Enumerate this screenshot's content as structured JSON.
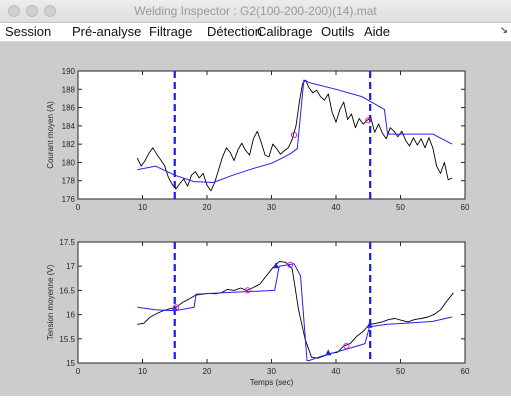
{
  "window": {
    "title": "Welding Inspector : G2(100-200-200)(14).mat"
  },
  "menu": {
    "items": [
      {
        "id": "session",
        "label": "Session"
      },
      {
        "id": "pre-analyse",
        "label": "Pré-analyse"
      },
      {
        "id": "filtrage",
        "label": "Filtrage"
      },
      {
        "id": "detection",
        "label": "Détection"
      },
      {
        "id": "calibrage",
        "label": "Calibrage"
      },
      {
        "id": "outils",
        "label": "Outils"
      },
      {
        "id": "aide",
        "label": "Aide"
      }
    ],
    "overflow_icon": "chevron-down-icon"
  },
  "colors": {
    "signal": "#000000",
    "model": "#2222ee",
    "marker": "#dd22dd",
    "cut": "#1a1aee"
  },
  "chart_data": [
    {
      "type": "line",
      "title": "",
      "xlabel": "",
      "ylabel": "Courant moyen (A)",
      "xlim": [
        0,
        60
      ],
      "ylim": [
        176,
        190
      ],
      "xticks": [
        "0",
        "10",
        "20",
        "30",
        "40",
        "50",
        "60"
      ],
      "yticks": [
        "176",
        "178",
        "180",
        "182",
        "184",
        "186",
        "188",
        "190"
      ],
      "vlines": [
        15,
        45.3
      ],
      "series": [
        {
          "style": "signal",
          "x": [
            9.2,
            9.8,
            10.4,
            11,
            11.6,
            12.2,
            12.8,
            13.4,
            14,
            14.6,
            15.2,
            15.8,
            16.4,
            17,
            17.6,
            18.2,
            18.8,
            19.4,
            20,
            20.6,
            21.2,
            21.8,
            22.4,
            23,
            23.6,
            24.2,
            24.8,
            25.4,
            26,
            26.6,
            27.2,
            27.8,
            28.4,
            29,
            29.6,
            30.2,
            30.8,
            31.4,
            32,
            32.6,
            33.2,
            33.8,
            34.3,
            34.8,
            35.3,
            35.8,
            36.4,
            37,
            37.6,
            38.2,
            38.8,
            39.4,
            40,
            40.6,
            41.2,
            41.8,
            42.4,
            43,
            43.6,
            44.2,
            44.8,
            45.4,
            46,
            46.6,
            47.2,
            47.8,
            48.4,
            49,
            49.6,
            50.2,
            50.8,
            51.4,
            52,
            52.6,
            53.2,
            53.8,
            54.4,
            55,
            55.6,
            56.2,
            56.8,
            57.4,
            58
          ],
          "y": [
            180.5,
            179.6,
            180.2,
            181.0,
            181.6,
            180.9,
            180.3,
            179.7,
            178.4,
            177.6,
            177.1,
            177.7,
            178.2,
            177.4,
            178.6,
            179.0,
            178.3,
            178.8,
            177.5,
            176.9,
            177.8,
            179.2,
            180.6,
            181.6,
            181.1,
            180.2,
            181.4,
            182.1,
            181.3,
            180.8,
            182.6,
            183.4,
            182.2,
            180.8,
            180.6,
            182.0,
            181.5,
            180.9,
            181.3,
            181.6,
            182.5,
            184.0,
            186.5,
            188.6,
            189.0,
            188.2,
            187.6,
            187.9,
            187.2,
            186.8,
            187.5,
            185.5,
            184.4,
            185.8,
            186.6,
            184.7,
            185.3,
            183.8,
            184.8,
            184.2,
            184.6,
            184.9,
            183.3,
            184.2,
            183.2,
            182.6,
            183.8,
            183.4,
            182.8,
            183.4,
            182.4,
            181.8,
            182.7,
            181.9,
            182.6,
            181.6,
            182.7,
            181.6,
            179.6,
            178.8,
            180.0,
            178.1,
            178.3
          ]
        },
        {
          "style": "model",
          "x": [
            9.2,
            12,
            15,
            18,
            21,
            24,
            27,
            30,
            32,
            33,
            34,
            35,
            36,
            40,
            44,
            47.5,
            48,
            52,
            55,
            58
          ],
          "y": [
            179.2,
            179.6,
            178.6,
            177.9,
            177.8,
            178.6,
            179.3,
            179.9,
            180.6,
            181.0,
            181.5,
            189.0,
            188.7,
            188.0,
            187.2,
            185.8,
            183.1,
            183.1,
            183.1,
            182.0
          ]
        }
      ],
      "markers": [
        {
          "x": 33.5,
          "y": 183.0
        },
        {
          "x": 45.0,
          "y": 184.6
        }
      ]
    },
    {
      "type": "line",
      "title": "",
      "xlabel": "Temps (sec)",
      "ylabel": "Tension moyenne (V)",
      "xlim": [
        0,
        60
      ],
      "ylim": [
        15,
        17.5
      ],
      "xticks": [
        "0",
        "10",
        "20",
        "30",
        "40",
        "50",
        "60"
      ],
      "yticks": [
        "15",
        "15.5",
        "16",
        "16.5",
        "17",
        "17.5"
      ],
      "vlines": [
        15,
        45.3
      ],
      "series": [
        {
          "style": "signal",
          "x": [
            9.2,
            10.2,
            11.2,
            12.2,
            13.2,
            14.2,
            15.2,
            16.2,
            17.2,
            18.2,
            19.2,
            20.2,
            21.2,
            22.2,
            23.2,
            24.2,
            25.2,
            26.2,
            27.2,
            28.2,
            29.2,
            30.2,
            31.2,
            32.2,
            33.2,
            34.2,
            35.2,
            36.2,
            37.2,
            38.2,
            39.2,
            40.2,
            41.2,
            42.2,
            43.2,
            44.2,
            45.2,
            46.2,
            47.2,
            48.2,
            49.2,
            50.2,
            51.2,
            52.2,
            53.2,
            54.2,
            55.2,
            56.2,
            57.2,
            58.2
          ],
          "y": [
            15.8,
            15.82,
            15.95,
            16.02,
            16.08,
            16.12,
            16.15,
            16.25,
            16.32,
            16.4,
            16.42,
            16.44,
            16.43,
            16.45,
            16.52,
            16.5,
            16.55,
            16.5,
            16.56,
            16.63,
            16.8,
            16.97,
            17.1,
            17.08,
            16.95,
            16.1,
            15.5,
            15.12,
            15.1,
            15.15,
            15.2,
            15.22,
            15.35,
            15.4,
            15.55,
            15.65,
            15.8,
            15.82,
            15.85,
            15.9,
            15.92,
            15.88,
            15.85,
            15.9,
            15.92,
            15.95,
            16.0,
            16.1,
            16.28,
            16.45
          ]
        },
        {
          "style": "model",
          "x": [
            9.2,
            12,
            15,
            18,
            18.3,
            21,
            24,
            27,
            30.5,
            31.2,
            33.5,
            34.5,
            35.5,
            35.8,
            38,
            42,
            44.5,
            45.2,
            48,
            52,
            55,
            58
          ],
          "y": [
            16.15,
            16.1,
            16.08,
            16.15,
            16.42,
            16.44,
            16.46,
            16.48,
            16.5,
            17.0,
            17.05,
            16.8,
            15.05,
            15.05,
            15.15,
            15.3,
            15.4,
            15.75,
            15.8,
            15.83,
            15.86,
            15.95
          ]
        }
      ],
      "markers": [
        {
          "x": 15.2,
          "y": 16.15
        },
        {
          "x": 26.3,
          "y": 16.5
        },
        {
          "x": 32.9,
          "y": 17.03
        },
        {
          "x": 41.6,
          "y": 15.35
        }
      ],
      "knots": [
        {
          "x": 15.0,
          "y": 16.12
        },
        {
          "x": 30.7,
          "y": 17.0
        },
        {
          "x": 38.8,
          "y": 15.2
        },
        {
          "x": 45.2,
          "y": 15.77
        }
      ]
    }
  ]
}
